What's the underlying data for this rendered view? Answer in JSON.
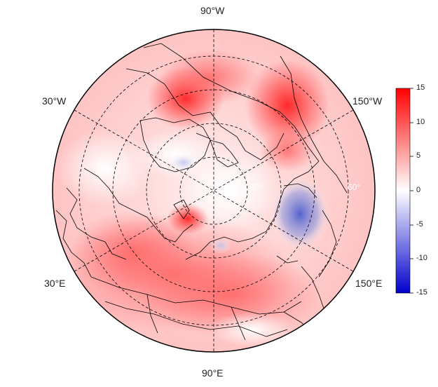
{
  "map": {
    "projection": "north-polar-stereographic",
    "meridian_labels": [
      {
        "label": "90°W",
        "lon": -90
      },
      {
        "label": "150°W",
        "lon": -150
      },
      {
        "label": "150°E",
        "lon": 150
      },
      {
        "label": "90°E",
        "lon": 90
      },
      {
        "label": "30°E",
        "lon": 30
      },
      {
        "label": "30°W",
        "lon": -30
      }
    ],
    "inner_labels": [
      "60°",
      "60°"
    ],
    "colors": {
      "negative": "#0000cc",
      "neutral": "#ffffff",
      "positive": "#ff0000",
      "coastline": "#000000",
      "gridline": "#000000"
    }
  },
  "colorbar": {
    "min": -15,
    "max": 15,
    "ticks": [
      "15",
      "10",
      "5",
      "0",
      "-5",
      "-10",
      "-15"
    ]
  }
}
